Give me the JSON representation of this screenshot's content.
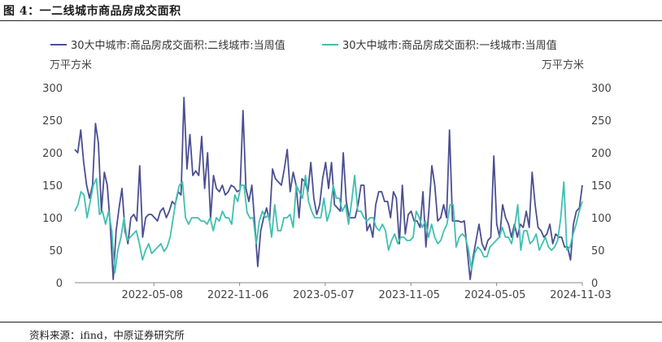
{
  "figure_title": "图 4：一二线城市商品房成交面积",
  "source": "资料来源：ifind，中原证券研究所",
  "chart_data": {
    "type": "line",
    "title": "",
    "ylabel_left": "万平方米",
    "ylabel_right": "万平方米",
    "ylim": [
      0,
      300
    ],
    "yticks": [
      0,
      50,
      100,
      150,
      200,
      250,
      300
    ],
    "xtick_labels": [
      "2022-05-08",
      "2022-11-06",
      "2023-05-07",
      "2023-11-05",
      "2024-05-05",
      "2024-11-03"
    ],
    "xtick_index": [
      24,
      50,
      76,
      102,
      128,
      154
    ],
    "legend_position": "top",
    "series": [
      {
        "name": "30大中城市:商品房成交面积:二线城市:当周值",
        "color": "#4b4f91",
        "values": [
          205,
          200,
          235,
          185,
          150,
          130,
          150,
          245,
          215,
          110,
          170,
          150,
          90,
          5,
          80,
          115,
          145,
          80,
          60,
          100,
          105,
          95,
          180,
          70,
          100,
          105,
          105,
          100,
          95,
          110,
          115,
          100,
          110,
          125,
          120,
          140,
          135,
          285,
          175,
          228,
          165,
          172,
          165,
          225,
          145,
          200,
          98,
          165,
          145,
          140,
          150,
          135,
          140,
          150,
          147,
          140,
          143,
          265,
          145,
          125,
          150,
          90,
          25,
          80,
          100,
          115,
          95,
          175,
          160,
          155,
          150,
          175,
          205,
          140,
          170,
          150,
          100,
          160,
          155,
          140,
          185,
          130,
          105,
          120,
          160,
          185,
          145,
          185,
          120,
          115,
          110,
          200,
          125,
          100,
          100,
          100,
          120,
          150,
          150,
          80,
          90,
          70,
          120,
          140,
          140,
          125,
          125,
          100,
          140,
          130,
          60,
          150,
          75,
          105,
          110,
          95,
          95,
          85,
          140,
          55,
          110,
          180,
          150,
          95,
          100,
          120,
          100,
          235,
          95,
          95,
          95,
          93,
          95,
          50,
          5,
          40,
          65,
          90,
          60,
          50,
          65,
          70,
          195,
          90,
          70,
          120,
          100,
          90,
          70,
          90,
          70,
          90,
          85,
          110,
          85,
          170,
          120,
          85,
          80,
          70,
          75,
          90,
          60,
          75,
          70,
          70,
          55,
          55,
          35,
          90,
          110,
          115,
          150
        ],
        "x_end_index": 154
      },
      {
        "name": "30大中城市:商品房成交面积:一线城市:当周值",
        "color": "#3fc0b0",
        "values": [
          110,
          120,
          140,
          135,
          100,
          125,
          150,
          160,
          105,
          110,
          90,
          110,
          80,
          15,
          50,
          70,
          100,
          65,
          70,
          75,
          80,
          60,
          35,
          50,
          60,
          45,
          50,
          55,
          60,
          48,
          55,
          70,
          100,
          130,
          150,
          155,
          100,
          90,
          100,
          100,
          100,
          95,
          95,
          90,
          100,
          80,
          100,
          95,
          110,
          100,
          100,
          90,
          135,
          125,
          150,
          150,
          108,
          99,
          100,
          60,
          95,
          110,
          100,
          105,
          70,
          120,
          80,
          80,
          100,
          100,
          105,
          85,
          150,
          140,
          130,
          165,
          125,
          110,
          100,
          100,
          100,
          130,
          95,
          110,
          150,
          130,
          130,
          110,
          120,
          90,
          125,
          165,
          110,
          110,
          100,
          95,
          100,
          100,
          85,
          80,
          90,
          80,
          50,
          65,
          75,
          60,
          70,
          70,
          65,
          65,
          70,
          110,
          100,
          85,
          95,
          70,
          90,
          70,
          60,
          65,
          80,
          90,
          120,
          120,
          55,
          70,
          75,
          70,
          50,
          20,
          45,
          55,
          50,
          40,
          40,
          55,
          60,
          65,
          70,
          85,
          70,
          70,
          60,
          85,
          120,
          50,
          80,
          80,
          60,
          65,
          75,
          50,
          60,
          70,
          55,
          50,
          55,
          65,
          100,
          155,
          50,
          55,
          75,
          90,
          110,
          125
        ],
        "x_end_index": 154
      }
    ]
  }
}
